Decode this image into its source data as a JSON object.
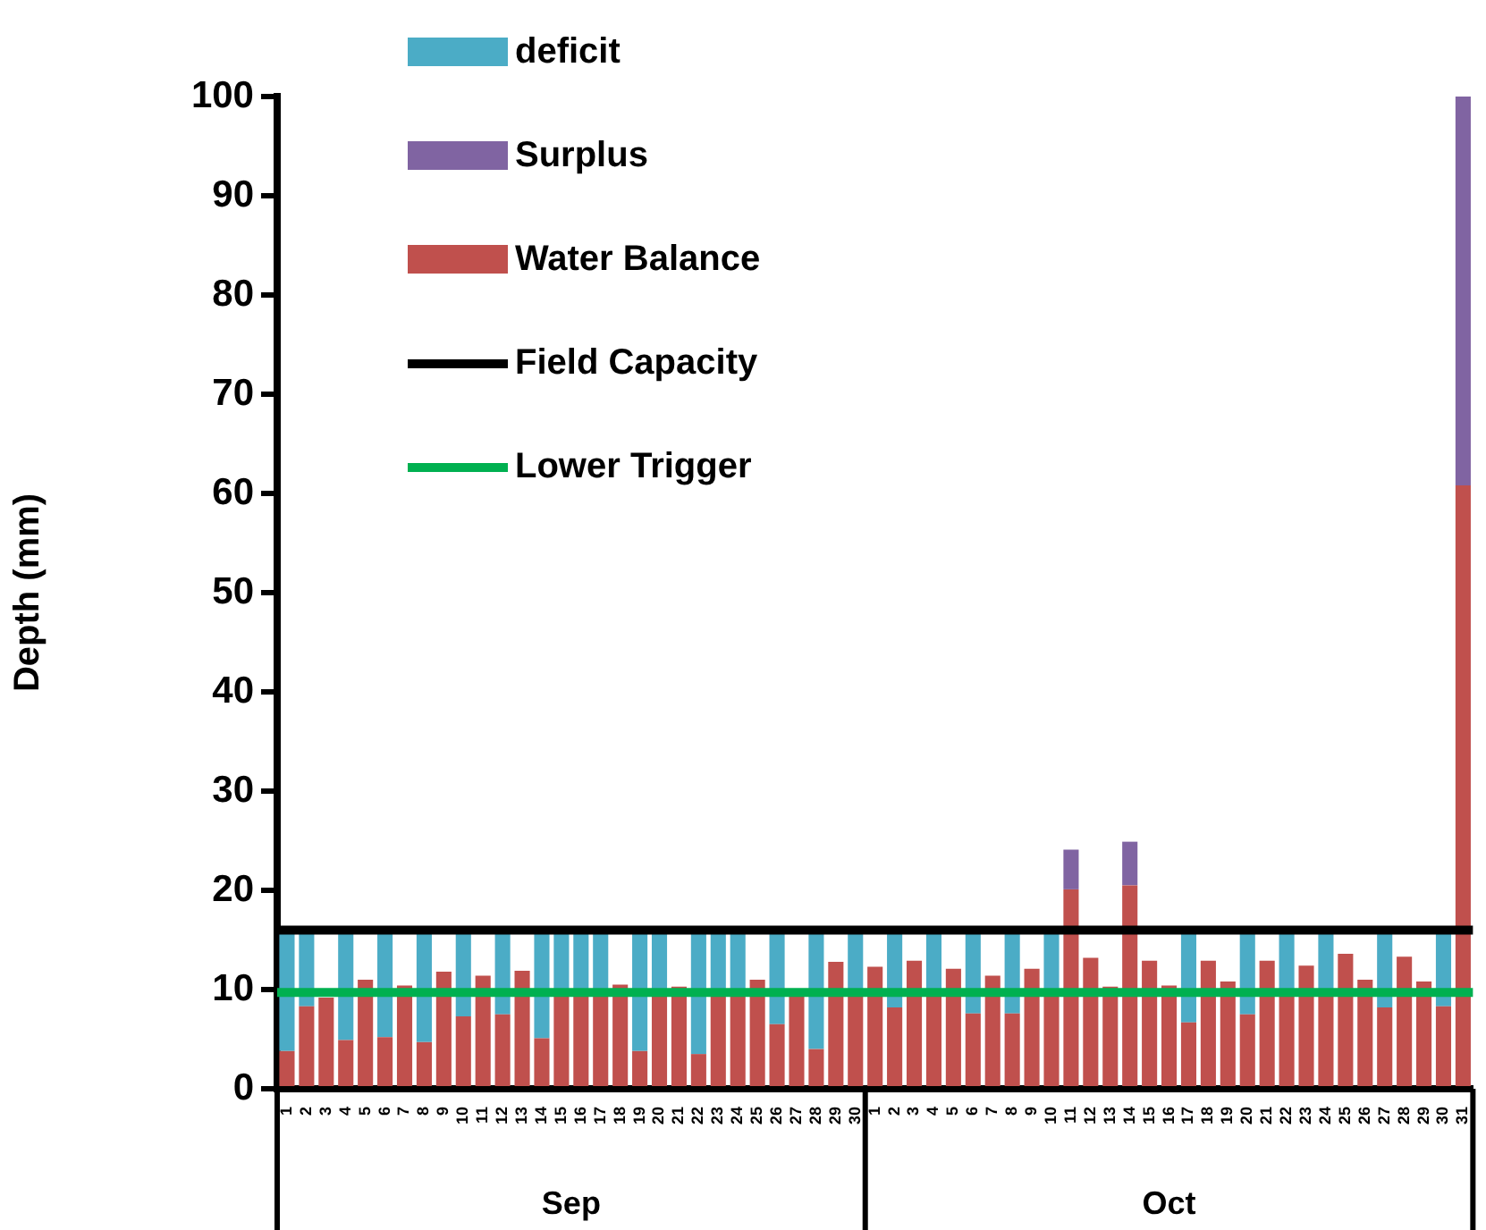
{
  "chart_data": {
    "type": "bar",
    "ylabel": "Depth (mm)",
    "stacked": true,
    "grid": false,
    "legend": "top left",
    "categories": [
      "1",
      "2",
      "3",
      "4",
      "5",
      "6",
      "7",
      "8",
      "9",
      "10",
      "11",
      "12",
      "13",
      "14",
      "15",
      "16",
      "17",
      "18",
      "19",
      "20",
      "21",
      "22",
      "23",
      "24",
      "25",
      "26",
      "27",
      "28",
      "29",
      "30",
      "1",
      "2",
      "3",
      "4",
      "5",
      "6",
      "7",
      "8",
      "9",
      "10",
      "11",
      "12",
      "13",
      "14",
      "15",
      "16",
      "17",
      "18",
      "19",
      "20",
      "21",
      "22",
      "23",
      "24",
      "25",
      "26",
      "27",
      "28",
      "29",
      "30",
      "31"
    ],
    "series": [
      {
        "name": "Water Balance",
        "color": "#c0504d",
        "values": [
          3.8,
          8.3,
          9.2,
          4.9,
          11.0,
          5.2,
          10.4,
          4.7,
          11.8,
          7.3,
          11.4,
          7.5,
          11.9,
          5.1,
          9.5,
          9.5,
          9.5,
          10.5,
          3.8,
          9.5,
          10.3,
          3.5,
          9.5,
          9.5,
          11.0,
          6.5,
          9.8,
          4.0,
          12.8,
          9.5,
          12.3,
          8.2,
          12.9,
          9.5,
          12.1,
          7.6,
          11.4,
          7.6,
          12.1,
          9.5,
          20.1,
          13.2,
          10.3,
          20.5,
          12.9,
          10.4,
          6.7,
          12.9,
          10.8,
          7.5,
          12.9,
          9.6,
          12.4,
          9.5,
          13.6,
          11.0,
          8.2,
          13.3,
          10.8,
          8.3,
          60.8
        ]
      },
      {
        "name": "deficit",
        "color": "#4bacc6",
        "values": [
          12.2,
          7.7,
          null,
          11.1,
          null,
          10.8,
          null,
          11.3,
          null,
          8.7,
          null,
          8.5,
          null,
          10.9,
          6.5,
          6.5,
          6.5,
          null,
          12.2,
          6.5,
          null,
          12.5,
          6.5,
          6.5,
          null,
          9.5,
          null,
          12.0,
          null,
          6.5,
          null,
          7.8,
          null,
          6.5,
          null,
          8.4,
          null,
          8.4,
          null,
          6.5,
          null,
          null,
          null,
          null,
          null,
          null,
          9.3,
          null,
          null,
          8.5,
          null,
          6.4,
          null,
          6.5,
          null,
          null,
          7.8,
          null,
          null,
          7.7,
          null
        ]
      },
      {
        "name": "Surplus",
        "color": "#8064a2",
        "values": [
          null,
          null,
          null,
          null,
          null,
          null,
          null,
          null,
          null,
          null,
          null,
          null,
          null,
          null,
          null,
          null,
          null,
          null,
          null,
          null,
          null,
          null,
          null,
          null,
          null,
          null,
          null,
          null,
          null,
          null,
          null,
          null,
          null,
          null,
          null,
          null,
          null,
          null,
          null,
          null,
          4.0,
          null,
          null,
          4.4,
          null,
          null,
          null,
          null,
          null,
          null,
          null,
          null,
          null,
          null,
          null,
          null,
          null,
          null,
          null,
          null,
          39.2
        ]
      }
    ],
    "ref_lines": [
      {
        "axis": "y",
        "value": 16,
        "label": "Field Capacity",
        "color": "#000000"
      },
      {
        "axis": "y",
        "value": 9.7,
        "label": "Lower Trigger",
        "color": "#00b050"
      }
    ],
    "ylim": [
      0,
      100
    ],
    "yticks": [
      0,
      10,
      20,
      30,
      40,
      50,
      60,
      70,
      80,
      90,
      100
    ],
    "annotations": [
      "Sep",
      "Oct"
    ]
  }
}
